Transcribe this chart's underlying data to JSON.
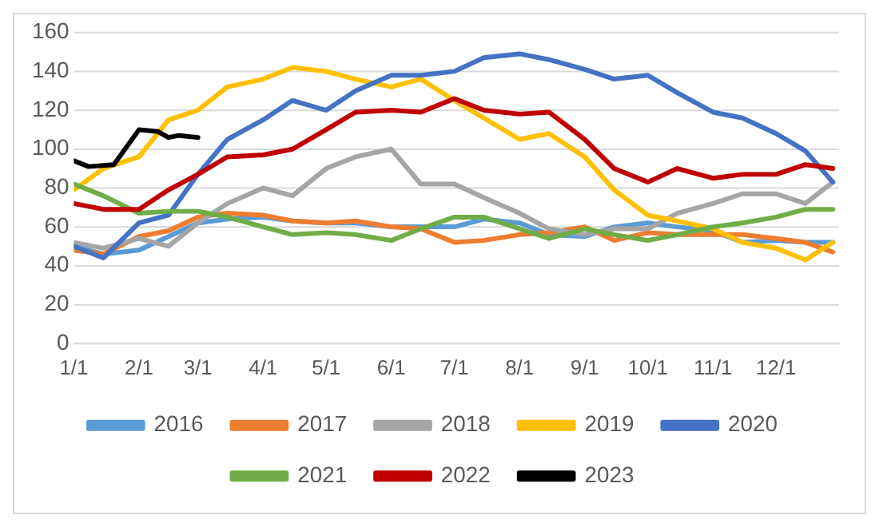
{
  "chart_data": {
    "type": "line",
    "x": [
      "--01-01",
      "--01-15",
      "--02-01",
      "--02-15",
      "--03-01",
      "--03-15",
      "--04-01",
      "--04-15",
      "--05-01",
      "--05-15",
      "--06-01",
      "--06-15",
      "--07-01",
      "--07-15",
      "--08-01",
      "--08-15",
      "--09-01",
      "--09-15",
      "--10-01",
      "--10-15",
      "--11-01",
      "--11-15",
      "--12-01",
      "--12-15",
      "--12-28"
    ],
    "series": [
      {
        "name": "2016",
        "color": "#5b9bd5",
        "values": [
          50,
          46,
          48,
          55,
          62,
          64,
          65,
          63,
          62,
          62,
          60,
          60,
          60,
          64,
          62,
          56,
          55,
          60,
          62,
          60,
          58,
          52,
          53,
          52,
          52
        ]
      },
      {
        "name": "2017",
        "color": "#ed7d31",
        "values": [
          48,
          46,
          55,
          58,
          65,
          67,
          66,
          63,
          62,
          63,
          60,
          59,
          52,
          53,
          56,
          57,
          60,
          53,
          57,
          56,
          56,
          56,
          54,
          52,
          47
        ]
      },
      {
        "name": "2018",
        "color": "#a5a5a5",
        "values": [
          52,
          49,
          54,
          50,
          62,
          72,
          80,
          76,
          90,
          96,
          100,
          82,
          82,
          75,
          67,
          59,
          56,
          59,
          59,
          67,
          72,
          77,
          77,
          72,
          83
        ]
      },
      {
        "name": "2019",
        "color": "#ffc000",
        "values": [
          79,
          90,
          96,
          115,
          120,
          132,
          136,
          142,
          140,
          136,
          132,
          136,
          125,
          116,
          105,
          108,
          96,
          79,
          66,
          63,
          59,
          52,
          49,
          43,
          52
        ]
      },
      {
        "name": "2020",
        "color": "#4472c4",
        "values": [
          50,
          44,
          62,
          66,
          87,
          105,
          115,
          125,
          120,
          130,
          138,
          138,
          140,
          147,
          149,
          146,
          141,
          136,
          138,
          129,
          119,
          116,
          108,
          99,
          83
        ]
      },
      {
        "name": "2021",
        "color": "#70ad47",
        "values": [
          82,
          76,
          67,
          68,
          68,
          65,
          60,
          56,
          57,
          56,
          53,
          59,
          65,
          65,
          59,
          54,
          59,
          56,
          53,
          56,
          60,
          62,
          65,
          69,
          69
        ]
      },
      {
        "name": "2022",
        "color": "#c00000",
        "values": [
          72,
          69,
          69,
          79,
          87,
          96,
          97,
          100,
          110,
          119,
          120,
          119,
          126,
          120,
          118,
          119,
          105,
          90,
          83,
          90,
          85,
          87,
          87,
          92,
          90
        ]
      },
      {
        "name": "2023",
        "color": "#000000",
        "x": [
          "--01-01",
          "--01-08",
          "--01-20",
          "--02-01",
          "--02-10",
          "--02-15",
          "--02-20",
          "--03-01"
        ],
        "values": [
          94,
          91,
          92,
          110,
          109,
          106,
          107,
          106
        ]
      }
    ],
    "xlim": [
      "--01-01",
      "--12-31"
    ],
    "xticks": [
      {
        "value": "--01-01",
        "label": "1/1"
      },
      {
        "value": "--02-01",
        "label": "2/1"
      },
      {
        "value": "--03-01",
        "label": "3/1"
      },
      {
        "value": "--04-01",
        "label": "4/1"
      },
      {
        "value": "--05-01",
        "label": "5/1"
      },
      {
        "value": "--06-01",
        "label": "6/1"
      },
      {
        "value": "--07-01",
        "label": "7/1"
      },
      {
        "value": "--08-01",
        "label": "8/1"
      },
      {
        "value": "--09-01",
        "label": "9/1"
      },
      {
        "value": "--10-01",
        "label": "10/1"
      },
      {
        "value": "--11-01",
        "label": "11/1"
      },
      {
        "value": "--12-01",
        "label": "12/1"
      }
    ],
    "ylim": [
      0,
      160
    ],
    "yticks": [
      0,
      20,
      40,
      60,
      80,
      100,
      120,
      140,
      160
    ],
    "grid": "y",
    "legend": "bottom",
    "marker": "none",
    "line_style": "solid"
  }
}
